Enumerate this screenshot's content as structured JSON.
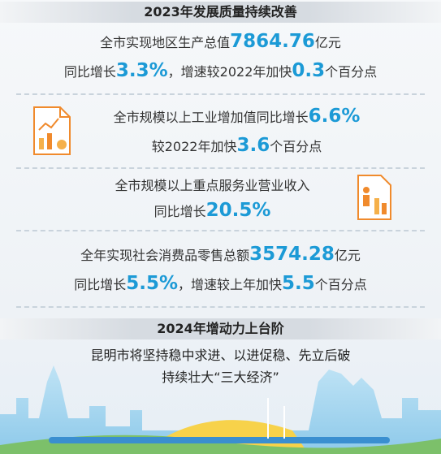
{
  "header": {
    "title": "2023年发展质量持续改善"
  },
  "sections": [
    {
      "lines": [
        {
          "segments": [
            {
              "text": "全市实现地区生产总值",
              "color": "#333333"
            },
            {
              "text": "7864.76",
              "color": "#1c9ad6"
            },
            {
              "text": "亿元",
              "color": "#333333"
            }
          ]
        },
        {
          "segments": [
            {
              "text": "同比增长",
              "color": "#333333"
            },
            {
              "text": "3.3%",
              "color": "#1c9ad6"
            },
            {
              "text": "，增速较2022年加快",
              "color": "#333333"
            },
            {
              "text": "0.3",
              "color": "#1c9ad6"
            },
            {
              "text": "个百分点",
              "color": "#333333"
            }
          ]
        }
      ]
    },
    {
      "lines": [
        {
          "segments": [
            {
              "text": "全市规模以上工业增加值同比增长",
              "color": "#333333"
            },
            {
              "text": "6.6%",
              "color": "#1c9ad6"
            }
          ]
        },
        {
          "segments": [
            {
              "text": "较2022年加快",
              "color": "#333333"
            },
            {
              "text": "3.6",
              "color": "#1c9ad6"
            },
            {
              "text": "个百分点",
              "color": "#333333"
            }
          ]
        }
      ]
    },
    {
      "lines": [
        {
          "segments": [
            {
              "text": "全市规模以上重点服务业营业收入",
              "color": "#333333"
            }
          ]
        },
        {
          "segments": [
            {
              "text": "同比增长",
              "color": "#333333"
            },
            {
              "text": "20.5%",
              "color": "#1c9ad6"
            }
          ]
        }
      ]
    },
    {
      "lines": [
        {
          "segments": [
            {
              "text": "全年实现社会消费品零售总额",
              "color": "#333333"
            },
            {
              "text": "3574.28",
              "color": "#1c9ad6"
            },
            {
              "text": "亿元",
              "color": "#333333"
            }
          ]
        },
        {
          "segments": [
            {
              "text": "同比增长",
              "color": "#333333"
            },
            {
              "text": "5.5%",
              "color": "#1c9ad6"
            },
            {
              "text": "，增速较上年加快",
              "color": "#333333"
            },
            {
              "text": "5.5",
              "color": "#1c9ad6"
            },
            {
              "text": "个百分点",
              "color": "#333333"
            }
          ]
        }
      ]
    }
  ],
  "outlook": {
    "title": "2024年增动力上台阶",
    "lines": [
      "昆明市将坚持稳中求进、以进促稳、先立后破",
      "持续壮大“三大经济”"
    ]
  }
}
